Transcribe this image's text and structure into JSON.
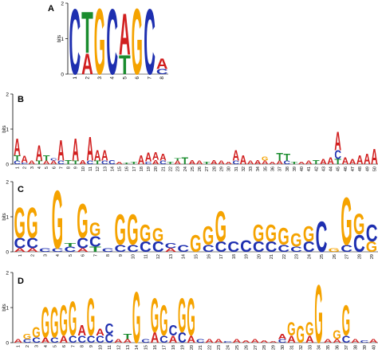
{
  "colors": {
    "A": "#d11f1f",
    "C": "#1e2fb0",
    "G": "#f5a300",
    "T": "#1a8c2e",
    "axis": "#000000"
  },
  "chart_data": [
    {
      "type": "sequence-logo",
      "panel_label": "A",
      "ylabel": "bits",
      "ylim": [
        0,
        2
      ],
      "yticks": [
        0,
        1,
        2
      ],
      "x": [
        "1",
        "2",
        "3",
        "4",
        "5",
        "6",
        "7",
        "8"
      ],
      "positions": [
        [
          [
            "C",
            1.9
          ]
        ],
        [
          [
            "A",
            0.6
          ],
          [
            "T",
            1.2
          ]
        ],
        [
          [
            "G",
            1.9
          ]
        ],
        [
          [
            "C",
            1.9
          ]
        ],
        [
          [
            "T",
            0.55
          ],
          [
            "A",
            1.2
          ]
        ],
        [
          [
            "G",
            1.9
          ]
        ],
        [
          [
            "C",
            1.9
          ]
        ],
        [
          [
            "C",
            0.15
          ],
          [
            "A",
            0.3
          ]
        ]
      ]
    },
    {
      "type": "sequence-logo",
      "panel_label": "B",
      "ylabel": "bits",
      "ylim": [
        0,
        2
      ],
      "yticks": [
        0,
        1,
        2
      ],
      "x": [
        "1",
        "2",
        "3",
        "4",
        "5",
        "6",
        "7",
        "8",
        "9",
        "10",
        "11",
        "12",
        "13",
        "14",
        "15",
        "16",
        "17",
        "18",
        "19",
        "20",
        "21",
        "22",
        "23",
        "24",
        "25",
        "26",
        "27",
        "28",
        "29",
        "30",
        "31",
        "32",
        "33",
        "34",
        "35",
        "36",
        "37",
        "38",
        "39",
        "40",
        "41",
        "42",
        "43",
        "44",
        "45",
        "46",
        "47",
        "48",
        "49",
        "50"
      ],
      "positions": [
        [
          [
            "C",
            0.1
          ],
          [
            "T",
            0.15
          ],
          [
            "A",
            0.5
          ]
        ],
        [
          [
            "C",
            0.05
          ],
          [
            "A",
            0.2
          ]
        ],
        [
          [
            "A",
            0.1
          ]
        ],
        [
          [
            "T",
            0.1
          ],
          [
            "A",
            0.45
          ]
        ],
        [
          [
            "A",
            0.1
          ],
          [
            "T",
            0.15
          ]
        ],
        [
          [
            "A",
            0.1
          ],
          [
            "C",
            0.08
          ]
        ],
        [
          [
            "C",
            0.1
          ],
          [
            "A",
            0.6
          ]
        ],
        [
          [
            "T",
            0.12
          ]
        ],
        [
          [
            "T",
            0.1
          ],
          [
            "A",
            0.65
          ]
        ],
        [
          [
            "A",
            0.12
          ]
        ],
        [
          [
            "C",
            0.1
          ],
          [
            "A",
            0.7
          ]
        ],
        [
          [
            "T",
            0.1
          ],
          [
            "A",
            0.3
          ]
        ],
        [
          [
            "C",
            0.1
          ],
          [
            "A",
            0.3
          ]
        ],
        [
          [
            "C",
            0.12
          ]
        ],
        [
          [
            "A",
            0.08
          ]
        ],
        [
          [
            "T",
            0.05
          ]
        ],
        [
          [
            "T",
            0.08
          ]
        ],
        [
          [
            "A",
            0.25
          ]
        ],
        [
          [
            "C",
            0.08
          ],
          [
            "A",
            0.25
          ]
        ],
        [
          [
            "A",
            0.12
          ],
          [
            "A",
            0.22
          ]
        ],
        [
          [
            "C",
            0.1
          ],
          [
            "A",
            0.2
          ]
        ],
        [
          [
            "T",
            0.08
          ]
        ],
        [
          [
            "A",
            0.1
          ],
          [
            "T",
            0.08
          ]
        ],
        [
          [
            "T",
            0.2
          ]
        ],
        [
          [
            "A",
            0.12
          ]
        ],
        [
          [
            "A",
            0.1
          ]
        ],
        [
          [
            "T",
            0.08
          ]
        ],
        [
          [
            "A",
            0.12
          ]
        ],
        [
          [
            "A",
            0.1
          ]
        ],
        [
          [
            "A",
            0.08
          ]
        ],
        [
          [
            "C",
            0.1
          ],
          [
            "A",
            0.3
          ]
        ],
        [
          [
            "A",
            0.25
          ]
        ],
        [
          [
            "A",
            0.1
          ]
        ],
        [
          [
            "A",
            0.12
          ]
        ],
        [
          [
            "A",
            0.1
          ],
          [
            "G",
            0.12
          ]
        ],
        [
          [
            "A",
            0.08
          ]
        ],
        [
          [
            "A",
            0.1
          ],
          [
            "T",
            0.22
          ]
        ],
        [
          [
            "C",
            0.1
          ],
          [
            "T",
            0.2
          ]
        ],
        [
          [
            "T",
            0.08
          ]
        ],
        [
          [
            "A",
            0.08
          ]
        ],
        [
          [
            "A",
            0.1
          ]
        ],
        [
          [
            "T",
            0.12
          ]
        ],
        [
          [
            "A",
            0.15
          ]
        ],
        [
          [
            "A",
            0.2
          ]
        ],
        [
          [
            "T",
            0.15
          ],
          [
            "C",
            0.25
          ],
          [
            "A",
            0.55
          ]
        ],
        [
          [
            "A",
            0.2
          ]
        ],
        [
          [
            "A",
            0.15
          ]
        ],
        [
          [
            "A",
            0.25
          ]
        ],
        [
          [
            "A",
            0.3
          ]
        ],
        [
          [
            "A",
            0.45
          ]
        ]
      ]
    },
    {
      "type": "sequence-logo",
      "panel_label": "C",
      "ylabel": "bits",
      "ylim": [
        0,
        2
      ],
      "yticks": [
        0,
        1,
        2
      ],
      "x": [
        "1",
        "2",
        "3",
        "4",
        "5",
        "6",
        "7",
        "8",
        "9",
        "10",
        "11",
        "12",
        "13",
        "14",
        "15",
        "16",
        "17",
        "18",
        "19",
        "20",
        "21",
        "22",
        "23",
        "24",
        "25",
        "26",
        "27",
        "28",
        "29"
      ],
      "positions": [
        [
          [
            "A",
            0.1
          ],
          [
            "C",
            0.3
          ],
          [
            "G",
            0.9
          ]
        ],
        [
          [
            "A",
            0.1
          ],
          [
            "C",
            0.3
          ],
          [
            "G",
            0.9
          ]
        ],
        [
          [
            "C",
            0.1
          ]
        ],
        [
          [
            "C",
            0.1
          ],
          [
            "G",
            1.7
          ]
        ],
        [
          [
            "C",
            0.15
          ],
          [
            "T",
            0.1
          ]
        ],
        [
          [
            "A",
            0.1
          ],
          [
            "C",
            0.3
          ],
          [
            "G",
            1.0
          ]
        ],
        [
          [
            "T",
            0.15
          ],
          [
            "C",
            0.3
          ],
          [
            "G",
            0.4
          ]
        ],
        [
          [
            "C",
            0.1
          ]
        ],
        [
          [
            "C",
            0.2
          ],
          [
            "G",
            0.9
          ]
        ],
        [
          [
            "C",
            0.2
          ],
          [
            "G",
            0.9
          ]
        ],
        [
          [
            "C",
            0.3
          ],
          [
            "G",
            0.5
          ]
        ],
        [
          [
            "C",
            0.3
          ],
          [
            "G",
            0.4
          ]
        ],
        [
          [
            "A",
            0.1
          ],
          [
            "C",
            0.15
          ]
        ],
        [
          [
            "C",
            0.2
          ]
        ],
        [
          [
            "G",
            0.5
          ]
        ],
        [
          [
            "C",
            0.2
          ],
          [
            "G",
            0.55
          ]
        ],
        [
          [
            "C",
            0.3
          ],
          [
            "G",
            0.9
          ]
        ],
        [
          [
            "C",
            0.3
          ]
        ],
        [
          [
            "C",
            0.35
          ]
        ],
        [
          [
            "C",
            0.3
          ],
          [
            "G",
            0.5
          ]
        ],
        [
          [
            "C",
            0.3
          ],
          [
            "G",
            0.5
          ]
        ],
        [
          [
            "C",
            0.2
          ],
          [
            "G",
            0.5
          ]
        ],
        [
          [
            "C",
            0.15
          ],
          [
            "G",
            0.4
          ]
        ],
        [
          [
            "C",
            0.3
          ],
          [
            "G",
            0.45
          ]
        ],
        [
          [
            "C",
            0.9
          ]
        ],
        [
          [
            "G",
            0.1
          ]
        ],
        [
          [
            "C",
            0.2
          ],
          [
            "G",
            1.4
          ]
        ],
        [
          [
            "C",
            0.5
          ],
          [
            "G",
            0.6
          ]
        ],
        [
          [
            "G",
            0.3
          ],
          [
            "C",
            0.5
          ]
        ]
      ]
    },
    {
      "type": "sequence-logo",
      "panel_label": "D",
      "ylabel": "bits",
      "ylim": [
        0,
        2
      ],
      "yticks": [
        0,
        1,
        2
      ],
      "x": [
        "1",
        "2",
        "3",
        "4",
        "5",
        "6",
        "7",
        "8",
        "9",
        "10",
        "11",
        "12",
        "13",
        "14",
        "15",
        "16",
        "17",
        "18",
        "19",
        "20",
        "21",
        "22",
        "23",
        "24",
        "25",
        "26",
        "27",
        "28",
        "29",
        "30",
        "31",
        "32",
        "33",
        "34",
        "35",
        "36",
        "37",
        "38",
        "39",
        "40"
      ],
      "positions": [
        [
          [
            "A",
            0.1
          ]
        ],
        [
          [
            "C",
            0.1
          ],
          [
            "G",
            0.15
          ]
        ],
        [
          [
            "C",
            0.15
          ],
          [
            "G",
            0.3
          ]
        ],
        [
          [
            "A",
            0.15
          ],
          [
            "G",
            0.9
          ]
        ],
        [
          [
            "C",
            0.15
          ],
          [
            "G",
            0.9
          ]
        ],
        [
          [
            "A",
            0.2
          ],
          [
            "G",
            0.9
          ]
        ],
        [
          [
            "C",
            0.2
          ],
          [
            "G",
            1.0
          ]
        ],
        [
          [
            "C",
            0.2
          ],
          [
            "A",
            0.3
          ]
        ],
        [
          [
            "C",
            0.2
          ],
          [
            "G",
            1.1
          ]
        ],
        [
          [
            "C",
            0.2
          ],
          [
            "A",
            0.2
          ]
        ],
        [
          [
            "C",
            0.25
          ],
          [
            "C",
            0.3
          ]
        ],
        [
          [
            "A",
            0.1
          ]
        ],
        [
          [
            "A",
            0.1
          ],
          [
            "T",
            0.15
          ]
        ],
        [
          [
            "G",
            1.5
          ]
        ],
        [
          [
            "C",
            0.1
          ]
        ],
        [
          [
            "A",
            0.3
          ],
          [
            "G",
            1.0
          ]
        ],
        [
          [
            "C",
            0.2
          ],
          [
            "G",
            0.9
          ]
        ],
        [
          [
            "A",
            0.2
          ],
          [
            "C",
            0.3
          ]
        ],
        [
          [
            "C",
            0.3
          ],
          [
            "G",
            1.0
          ]
        ],
        [
          [
            "A",
            0.2
          ],
          [
            "G",
            1.1
          ]
        ],
        [
          [
            "C",
            0.1
          ]
        ],
        [
          [
            "A",
            0.1
          ]
        ],
        [
          [
            "A",
            0.1
          ]
        ],
        [
          [
            "C",
            0.05
          ]
        ],
        [
          [
            "A",
            0.1
          ]
        ],
        [
          [
            "A",
            0.08
          ]
        ],
        [
          [
            "A",
            0.1
          ]
        ],
        [
          [
            "A",
            0.08
          ]
        ],
        [
          [
            "A",
            0.05
          ]
        ],
        [
          [
            "C",
            0.1
          ],
          [
            "A",
            0.15
          ]
        ],
        [
          [
            "A",
            0.2
          ],
          [
            "G",
            0.4
          ]
        ],
        [
          [
            "G",
            0.5
          ]
        ],
        [
          [
            "A",
            0.2
          ],
          [
            "G",
            0.4
          ]
        ],
        [
          [
            "G",
            1.7
          ]
        ],
        [
          [
            "A",
            0.1
          ]
        ],
        [
          [
            "A",
            0.1
          ],
          [
            "G",
            0.25
          ]
        ],
        [
          [
            "C",
            0.2
          ],
          [
            "G",
            0.9
          ]
        ],
        [
          [
            "A",
            0.1
          ]
        ],
        [
          [
            "C",
            0.08
          ]
        ],
        [
          [
            "A",
            0.1
          ]
        ]
      ]
    }
  ]
}
